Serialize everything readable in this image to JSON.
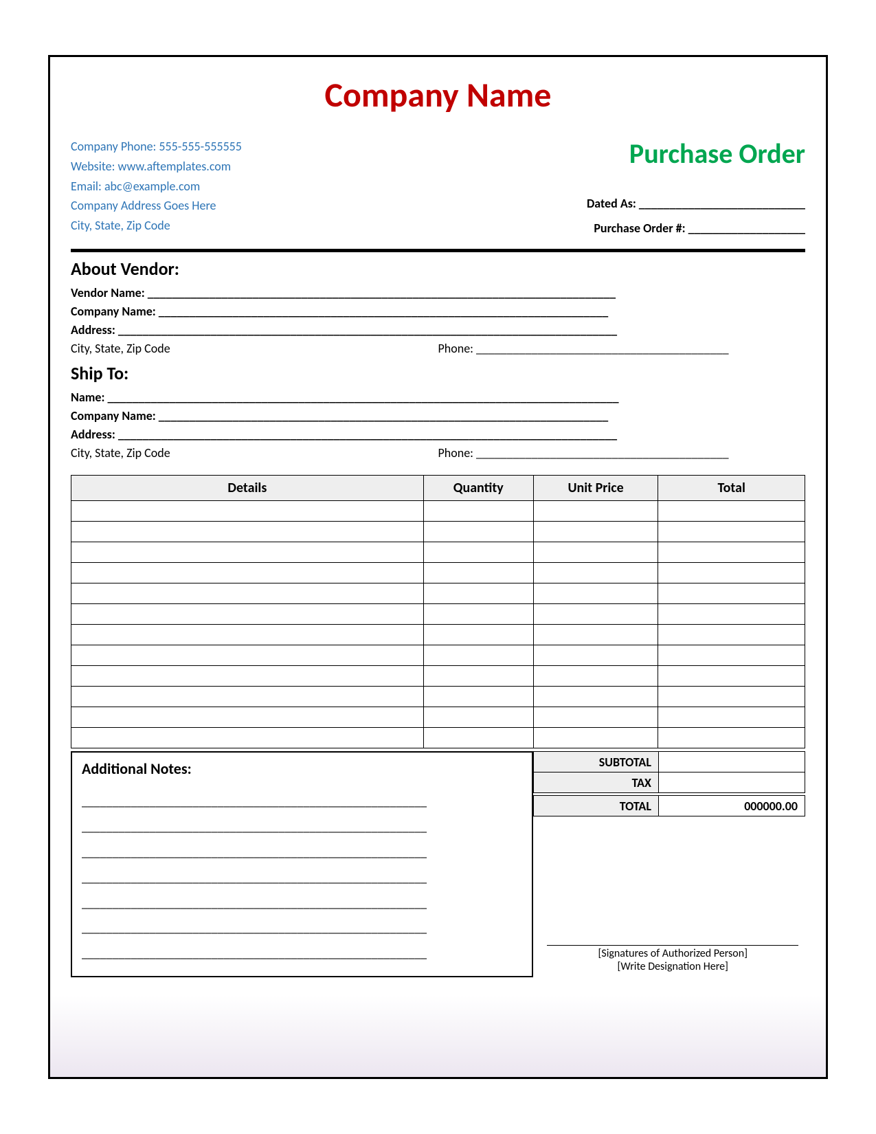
{
  "header": {
    "company_title": "Company Name",
    "company_title_color": "#c00000",
    "po_title": "Purchase Order",
    "po_title_color": "#00a650",
    "info_color": "#2e75b6",
    "phone": "Company Phone: 555-555-555555",
    "website": "Website: www.aftemplates.com",
    "email": "Email: abc@example.com",
    "address1": "Company Address Goes Here",
    "address2": "City, State, Zip Code",
    "dated_label": "Dated As: ___________________________",
    "po_number_label": "Purchase Order #: ___________________"
  },
  "vendor": {
    "section_title": "About Vendor:",
    "name_label": "Vendor Name: ____________________________________________________________________________",
    "company_label": "Company Name: _________________________________________________________________________",
    "address_label": "Address: _________________________________________________________________________________",
    "city_label": "City, State, Zip Code",
    "phone_label": "Phone: _________________________________________"
  },
  "shipto": {
    "section_title": "Ship To:",
    "name_label": "Name: ___________________________________________________________________________________",
    "company_label": "Company Name: _________________________________________________________________________",
    "address_label": "Address: _________________________________________________________________________________",
    "city_label": "City, State, Zip Code",
    "phone_label": "Phone: _________________________________________"
  },
  "table": {
    "columns": [
      "Details",
      "Quantity",
      "Unit Price",
      "Total"
    ],
    "header_bg": "#eeeeee",
    "row_count": 12
  },
  "totals": {
    "subtotal_label": "SUBTOTAL",
    "tax_label": "TAX",
    "total_label": "TOTAL",
    "total_value": "000000.00",
    "label_bg": "#eeeeee"
  },
  "notes": {
    "title": "Additional Notes:",
    "line": "________________________________________________________",
    "line_count": 7
  },
  "signature": {
    "line1": "[Signatures of Authorized Person]",
    "line2": "[Write Designation Here]"
  }
}
